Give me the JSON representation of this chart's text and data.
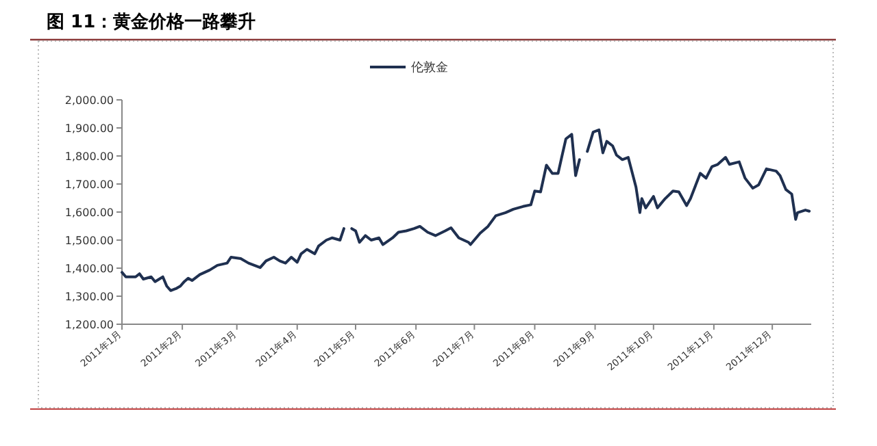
{
  "chart_data": {
    "type": "line",
    "title": "图 11：黄金价格一路攀升",
    "legend": "top",
    "x": [
      "2011-01-01",
      "2011-01-03",
      "2011-01-08",
      "2011-01-10",
      "2011-01-12",
      "2011-01-16",
      "2011-01-18",
      "2011-01-22",
      "2011-01-24",
      "2011-01-26",
      "2011-01-29",
      "2011-01-31",
      "2011-02-02",
      "2011-02-04",
      "2011-02-06",
      "2011-02-10",
      "2011-02-15",
      "2011-02-19",
      "2011-02-24",
      "2011-02-26",
      "2011-03-03",
      "2011-03-07",
      "2011-03-13",
      "2011-03-16",
      "2011-03-20",
      "2011-03-23",
      "2011-03-26",
      "2011-03-29",
      "2011-04-01",
      "2011-04-03",
      "2011-04-06",
      "2011-04-10",
      "2011-04-12",
      "2011-04-16",
      "2011-04-19",
      "2011-04-23",
      "2011-04-25",
      "2011-04-27",
      "2011-04-29",
      "2011-05-01",
      "2011-05-03",
      "2011-05-06",
      "2011-05-09",
      "2011-05-13",
      "2011-05-15",
      "2011-05-20",
      "2011-05-23",
      "2011-05-27",
      "2011-05-31",
      "2011-06-03",
      "2011-06-07",
      "2011-06-11",
      "2011-06-16",
      "2011-06-19",
      "2011-06-23",
      "2011-06-28",
      "2011-06-29",
      "2011-07-04",
      "2011-07-08",
      "2011-07-12",
      "2011-07-17",
      "2011-07-21",
      "2011-07-26",
      "2011-07-30",
      "2011-08-01",
      "2011-08-04",
      "2011-08-07",
      "2011-08-10",
      "2011-08-13",
      "2011-08-15",
      "2011-08-17",
      "2011-08-20",
      "2011-08-22",
      "2011-08-24",
      "2011-08-26",
      "2011-08-28",
      "2011-08-31",
      "2011-09-03",
      "2011-09-05",
      "2011-09-07",
      "2011-09-10",
      "2011-09-12",
      "2011-09-15",
      "2011-09-18",
      "2011-09-22",
      "2011-09-24",
      "2011-09-25",
      "2011-09-27",
      "2011-10-01",
      "2011-10-03",
      "2011-10-07",
      "2011-10-11",
      "2011-10-14",
      "2011-10-18",
      "2011-10-20",
      "2011-10-25",
      "2011-10-28",
      "2011-10-31",
      "2011-11-03",
      "2011-11-07",
      "2011-11-09",
      "2011-11-14",
      "2011-11-17",
      "2011-11-21",
      "2011-11-24",
      "2011-11-28",
      "2011-12-03",
      "2011-12-05",
      "2011-12-08",
      "2011-12-11",
      "2011-12-13",
      "2011-12-14",
      "2011-12-18",
      "2011-12-20"
    ],
    "series": [
      {
        "name": "伦敦金",
        "color": "#1f3050",
        "values": [
          1385,
          1369,
          1369,
          1380,
          1361,
          1369,
          1352,
          1369,
          1336,
          1320,
          1328,
          1336,
          1352,
          1364,
          1356,
          1377,
          1393,
          1410,
          1418,
          1439,
          1434,
          1418,
          1402,
          1426,
          1439,
          1426,
          1418,
          1439,
          1421,
          1451,
          1467,
          1451,
          1479,
          1500,
          1508,
          1500,
          1541,
          null,
          1541,
          1533,
          1492,
          1516,
          1500,
          1508,
          1484,
          1508,
          1528,
          1533,
          1541,
          1549,
          1528,
          1516,
          1533,
          1544,
          1508,
          1492,
          1484,
          1525,
          1549,
          1587,
          1598,
          1610,
          1620,
          1626,
          1675,
          1672,
          1767,
          1738,
          1738,
          1800,
          1861,
          1877,
          1730,
          1787,
          null,
          1816,
          1885,
          1893,
          1811,
          1852,
          1836,
          1803,
          1787,
          1795,
          1689,
          1598,
          1648,
          1615,
          1656,
          1615,
          1648,
          1675,
          1672,
          1623,
          1648,
          1738,
          1721,
          1762,
          1770,
          1795,
          1770,
          1779,
          1721,
          1685,
          1697,
          1754,
          1746,
          1730,
          1680,
          1664,
          1574,
          1598,
          1607,
          1603
        ]
      }
    ],
    "xlim": [
      "2011-01-01",
      "2011-12-21"
    ],
    "xticks": [
      {
        "value": "2011-01-01",
        "label": "2011年1月"
      },
      {
        "value": "2011-02-01",
        "label": "2011年2月"
      },
      {
        "value": "2011-03-01",
        "label": "2011年3月"
      },
      {
        "value": "2011-04-01",
        "label": "2011年4月"
      },
      {
        "value": "2011-05-01",
        "label": "2011年5月"
      },
      {
        "value": "2011-06-01",
        "label": "2011年6月"
      },
      {
        "value": "2011-07-01",
        "label": "2011年7月"
      },
      {
        "value": "2011-08-01",
        "label": "2011年8月"
      },
      {
        "value": "2011-09-01",
        "label": "2011年9月"
      },
      {
        "value": "2011-10-01",
        "label": "2011年10月"
      },
      {
        "value": "2011-11-01",
        "label": "2011年11月"
      },
      {
        "value": "2011-12-01",
        "label": "2011年12月"
      }
    ],
    "ylim": [
      1200,
      2000
    ],
    "yticks": [
      {
        "value": 1200,
        "label": "1,200.00"
      },
      {
        "value": 1300,
        "label": "1,300.00"
      },
      {
        "value": 1400,
        "label": "1,400.00"
      },
      {
        "value": 1500,
        "label": "1,500.00"
      },
      {
        "value": 1600,
        "label": "1,600.00"
      },
      {
        "value": 1700,
        "label": "1,700.00"
      },
      {
        "value": 1800,
        "label": "1,800.00"
      },
      {
        "value": 1900,
        "label": "1,900.00"
      },
      {
        "value": 2000,
        "label": "2,000.00"
      }
    ]
  }
}
